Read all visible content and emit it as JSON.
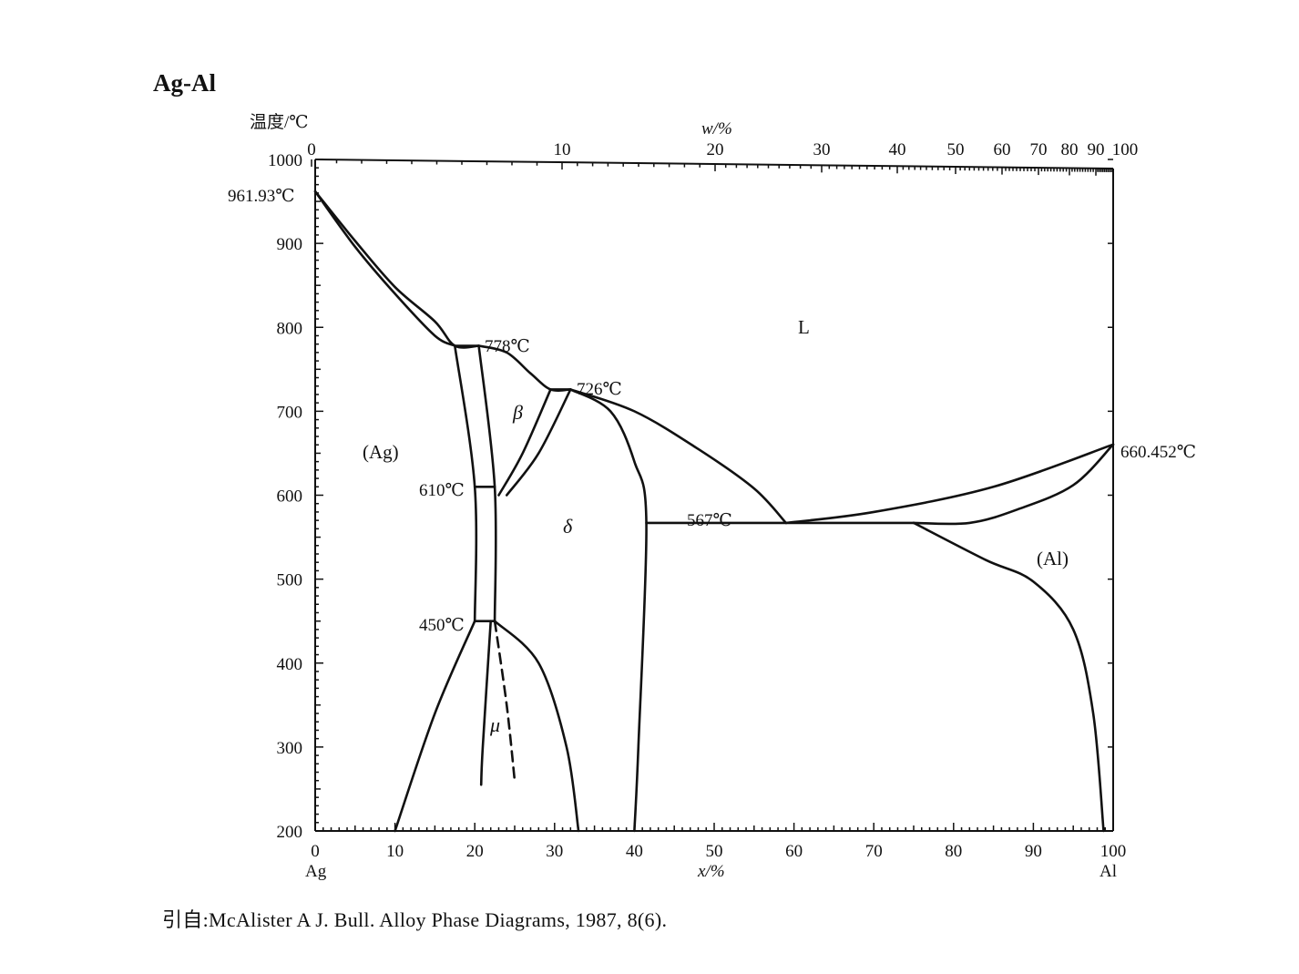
{
  "title": "Ag-Al",
  "source": "引自:McAlister A J. Bull. Alloy Phase Diagrams, 1987, 8(6).",
  "axes": {
    "y_title": "温度/℃",
    "y_ticks": [
      "200",
      "300",
      "400",
      "500",
      "600",
      "700",
      "800",
      "900",
      "1000"
    ],
    "x_bottom_title": "x/%",
    "x_bottom_ticks": [
      "0",
      "10",
      "20",
      "30",
      "40",
      "50",
      "60",
      "70",
      "80",
      "90",
      "100"
    ],
    "x_top_title": "w/%",
    "x_top_ticks": [
      "0",
      "10",
      "20",
      "30",
      "40",
      "50",
      "60",
      "70",
      "80",
      "90",
      "100"
    ],
    "left_element": "Ag",
    "right_element": "Al"
  },
  "temperatures": {
    "t961": "961.93℃",
    "t778": "778℃",
    "t726": "726℃",
    "t610": "610℃",
    "t567": "567℃",
    "t450": "450℃",
    "t660": "660.452℃"
  },
  "phases": {
    "liquid": "L",
    "ag": "(Ag)",
    "al": "(Al)",
    "beta": "β",
    "delta": "δ",
    "mu": "μ"
  },
  "chart_data": {
    "type": "phase-diagram",
    "xlim": [
      0,
      100
    ],
    "ylim": [
      200,
      1000
    ],
    "melting_points": [
      {
        "element": "Ag",
        "x": 0,
        "T": 961.93
      },
      {
        "element": "Al",
        "x": 100,
        "T": 660.452
      }
    ],
    "invariants": [
      {
        "T": 778,
        "x": [
          17.5,
          20.5
        ]
      },
      {
        "T": 726,
        "x": [
          29.5,
          32
        ]
      },
      {
        "T": 610,
        "x": [
          20,
          22.5
        ]
      },
      {
        "T": 567,
        "x": [
          41.5,
          59,
          75
        ]
      },
      {
        "T": 450,
        "x": [
          20,
          22.5
        ]
      }
    ],
    "curves": [
      {
        "name": "(Ag) liquidus",
        "points": [
          [
            0,
            961.93
          ],
          [
            5,
            903
          ],
          [
            10,
            848
          ],
          [
            15,
            807
          ],
          [
            17.5,
            778
          ],
          [
            20.5,
            778
          ]
        ]
      },
      {
        "name": "(Ag) solidus",
        "points": [
          [
            0,
            961.93
          ],
          [
            5,
            896
          ],
          [
            10,
            840
          ],
          [
            15,
            790
          ],
          [
            17.5,
            778
          ]
        ]
      },
      {
        "name": "β/δ liquidus",
        "points": [
          [
            20.5,
            778
          ],
          [
            24,
            770
          ],
          [
            27,
            745
          ],
          [
            29.5,
            726
          ],
          [
            32,
            726
          ]
        ]
      },
      {
        "name": "δ liquidus",
        "points": [
          [
            32,
            726
          ],
          [
            40,
            700
          ],
          [
            48,
            655
          ],
          [
            55,
            608
          ],
          [
            59,
            567
          ]
        ]
      },
      {
        "name": "Al liquidus",
        "points": [
          [
            59,
            567
          ],
          [
            70,
            580
          ],
          [
            85,
            610
          ],
          [
            100,
            660.452
          ]
        ]
      },
      {
        "name": "Al solidus",
        "points": [
          [
            75,
            567
          ],
          [
            82,
            567
          ],
          [
            88,
            583
          ],
          [
            95,
            612
          ],
          [
            100,
            660.452
          ]
        ]
      },
      {
        "name": "(Al) solvus",
        "points": [
          [
            75,
            567
          ],
          [
            84,
            523
          ],
          [
            90,
            497
          ],
          [
            95,
            440
          ],
          [
            97.5,
            340
          ],
          [
            98.8,
            200
          ]
        ]
      },
      {
        "name": "δ/(Al) solvus",
        "points": [
          [
            32,
            726
          ],
          [
            37,
            700
          ],
          [
            40,
            640
          ],
          [
            41.5,
            567
          ],
          [
            40.5,
            300
          ],
          [
            40,
            200
          ]
        ]
      },
      {
        "name": "β eutectoid right",
        "points": [
          [
            32,
            726
          ],
          [
            28,
            650
          ],
          [
            24,
            600
          ]
        ]
      },
      {
        "name": "β eutectoid left",
        "points": [
          [
            29.5,
            726
          ],
          [
            26,
            650
          ],
          [
            23,
            600
          ]
        ]
      },
      {
        "name": "(Ag) solvus high",
        "points": [
          [
            17.5,
            778
          ],
          [
            20,
            610
          ],
          [
            20,
            450
          ]
        ]
      },
      {
        "name": "(Ag) solvus low",
        "points": [
          [
            20,
            450
          ],
          [
            15,
            340
          ],
          [
            10,
            200
          ]
        ]
      },
      {
        "name": "ζ boundary",
        "points": [
          [
            20.5,
            778
          ],
          [
            22.5,
            610
          ],
          [
            22.5,
            450
          ]
        ]
      },
      {
        "name": "δ lower boundary",
        "points": [
          [
            22.5,
            450
          ],
          [
            28,
            400
          ],
          [
            31.5,
            300
          ],
          [
            33,
            200
          ]
        ]
      },
      {
        "name": "μ left",
        "points": [
          [
            22,
            450
          ],
          [
            21,
            300
          ],
          [
            20.8,
            255
          ]
        ]
      },
      {
        "name": "μ right (dashed)",
        "points": [
          [
            22.5,
            450
          ],
          [
            24,
            350
          ],
          [
            25,
            260
          ]
        ]
      }
    ]
  }
}
